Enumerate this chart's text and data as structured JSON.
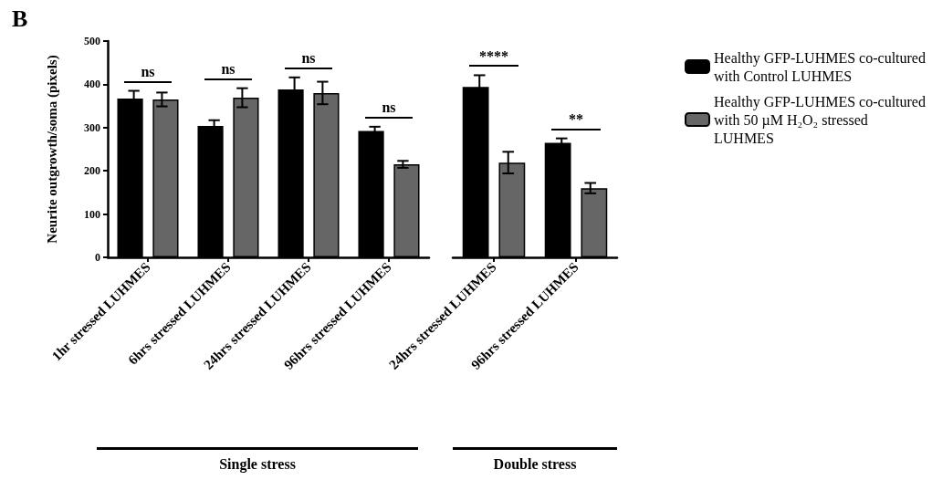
{
  "chart_data": [
    {
      "type": "bar",
      "title": "B",
      "ylabel": "Neurite outgrowth/soma (pixels)",
      "categories": [
        "1hr stressed LUHMES",
        "6hrs stressed LUHMES",
        "24hrs stressed LUHMES",
        "96hrs stressed LUHMES"
      ],
      "series": [
        {
          "name": "Healthy GFP-LUHMES co-cultured with Control LUHMES",
          "color": "#000000",
          "values": [
            367,
            304,
            388,
            292
          ],
          "errors": [
            18,
            13,
            28,
            10
          ]
        },
        {
          "name": "Healthy GFP-LUHMES co-cultured with 50 µM H₂O₂ stressed LUHMES",
          "color": "#666666",
          "values": [
            365,
            369,
            380,
            215
          ],
          "errors": [
            16,
            22,
            26,
            8
          ]
        }
      ],
      "ylim": [
        0,
        500
      ],
      "yticks": [
        0,
        100,
        200,
        300,
        400,
        500
      ],
      "grid": false,
      "legend": "top right",
      "annotations": [
        "ns",
        "ns",
        "ns",
        "ns",
        "Single stress"
      ]
    },
    {
      "type": "bar",
      "categories": [
        "24hrs stressed LUHMES",
        "96hrs stressed LUHMES"
      ],
      "series": [
        {
          "color": "#000000",
          "values": [
            394,
            265
          ],
          "errors": [
            27,
            10
          ]
        },
        {
          "color": "#666666",
          "values": [
            219,
            160
          ],
          "errors": [
            25,
            12
          ]
        }
      ],
      "ylim": [
        0,
        500
      ],
      "tick_labels": "x",
      "grid": false,
      "legend": false,
      "annotations": [
        "****",
        "**",
        "Double stress"
      ]
    }
  ]
}
